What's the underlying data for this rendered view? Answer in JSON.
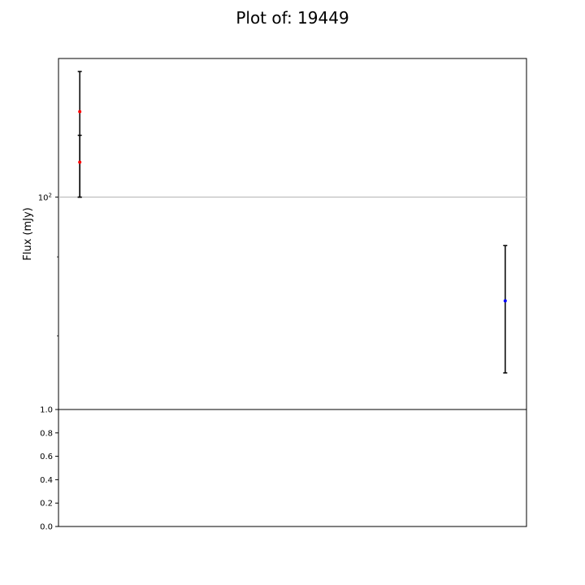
{
  "chart_data": [
    {
      "type": "scatter",
      "title": "Plot of: 19449",
      "xlabel": "",
      "ylabel": "Flux (mJy)",
      "yscale": "log",
      "ylim": [
        8.5,
        500
      ],
      "grid": "horizontal at 10^2",
      "y_ticks": [
        {
          "value": 100,
          "label": "10",
          "exp": "2"
        }
      ],
      "minor_y_ticks": [
        50,
        20
      ],
      "x_ticks": [],
      "series": [
        {
          "color": "#ff0000",
          "points": [
            {
              "x": 0,
              "y": 270,
              "yerr_low": 170,
              "yerr_high": 160
            },
            {
              "x": 0,
              "y": 150,
              "yerr_low": 50,
              "yerr_high": 55
            }
          ]
        },
        {
          "color": "#0000ff",
          "points": [
            {
              "x": 1,
              "y": 30,
              "yerr_low": 17,
              "yerr_high": 27
            }
          ]
        }
      ],
      "xlim": [
        -0.05,
        1.05
      ]
    },
    {
      "type": "line",
      "title": "",
      "xlabel": "",
      "ylabel": "",
      "ylim": [
        0.0,
        1.0
      ],
      "y_ticks": [
        "0.0",
        "0.2",
        "0.4",
        "0.6",
        "0.8",
        "1.0"
      ],
      "series": []
    }
  ]
}
